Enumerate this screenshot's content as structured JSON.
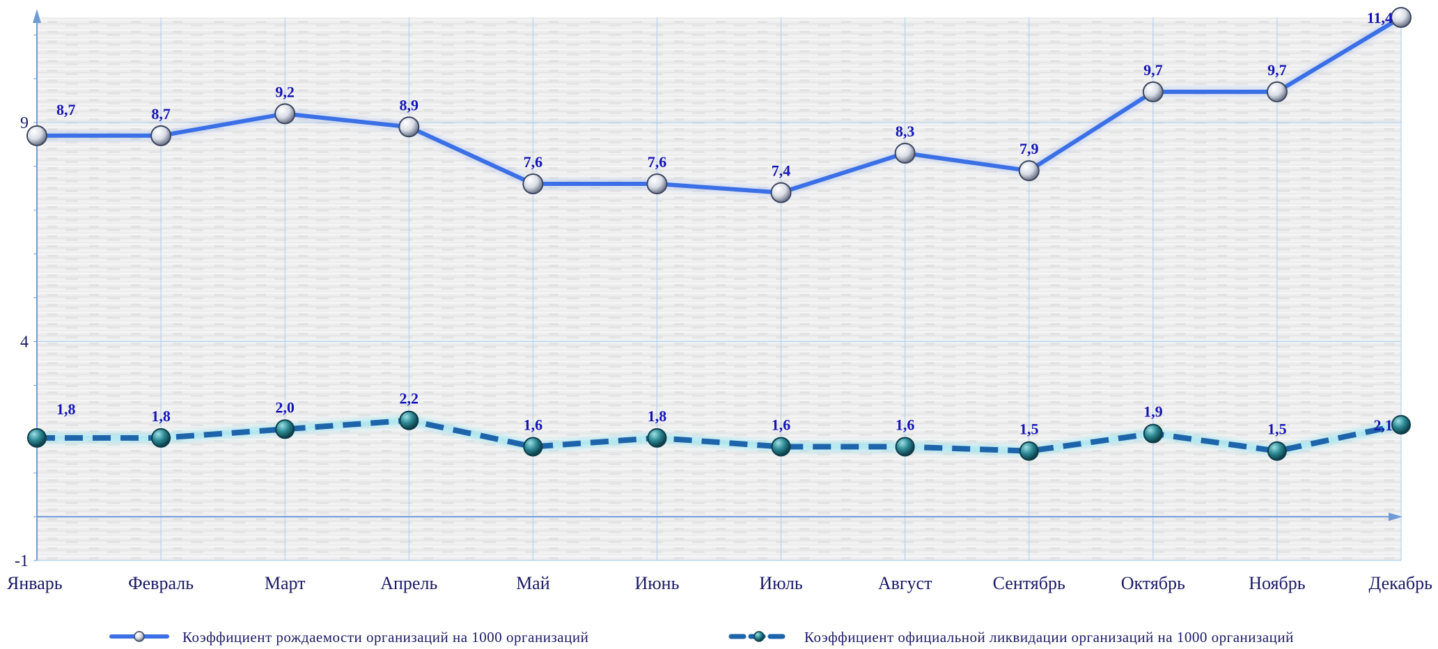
{
  "chart_data": {
    "type": "line",
    "categories": [
      "Январь",
      "Февраль",
      "Март",
      "Апрель",
      "Май",
      "Июнь",
      "Июль",
      "Август",
      "Сентябрь",
      "Октябрь",
      "Ноябрь",
      "Декабрь"
    ],
    "series": [
      {
        "name": "Коэффициент рождаемости организаций на 1000 организаций",
        "values": [
          8.7,
          8.7,
          9.2,
          8.9,
          7.6,
          7.6,
          7.4,
          8.3,
          7.9,
          9.7,
          9.7,
          11.4
        ],
        "labels": [
          "8,7",
          "8,7",
          "9,2",
          "8,9",
          "7,6",
          "7,6",
          "7,4",
          "8,3",
          "7,9",
          "9,7",
          "9,7",
          "11,4"
        ],
        "color": "#3a6fe6",
        "style": "solid"
      },
      {
        "name": "Коэффициент официальной ликвидации организаций на 1000 организаций",
        "values": [
          1.8,
          1.8,
          2.0,
          2.2,
          1.6,
          1.8,
          1.6,
          1.6,
          1.5,
          1.9,
          1.5,
          2.1
        ],
        "labels": [
          "1,8",
          "1,8",
          "2,0",
          "2,2",
          "1,6",
          "1,8",
          "1,6",
          "1,6",
          "1,5",
          "1,9",
          "1,5",
          "2,1"
        ],
        "color": "#1e64aa",
        "style": "dashed"
      }
    ],
    "y_ticks": [
      "9",
      "4",
      "-1"
    ],
    "ylim": [
      -1,
      11.4
    ],
    "grid": true,
    "legend_position": "bottom"
  }
}
